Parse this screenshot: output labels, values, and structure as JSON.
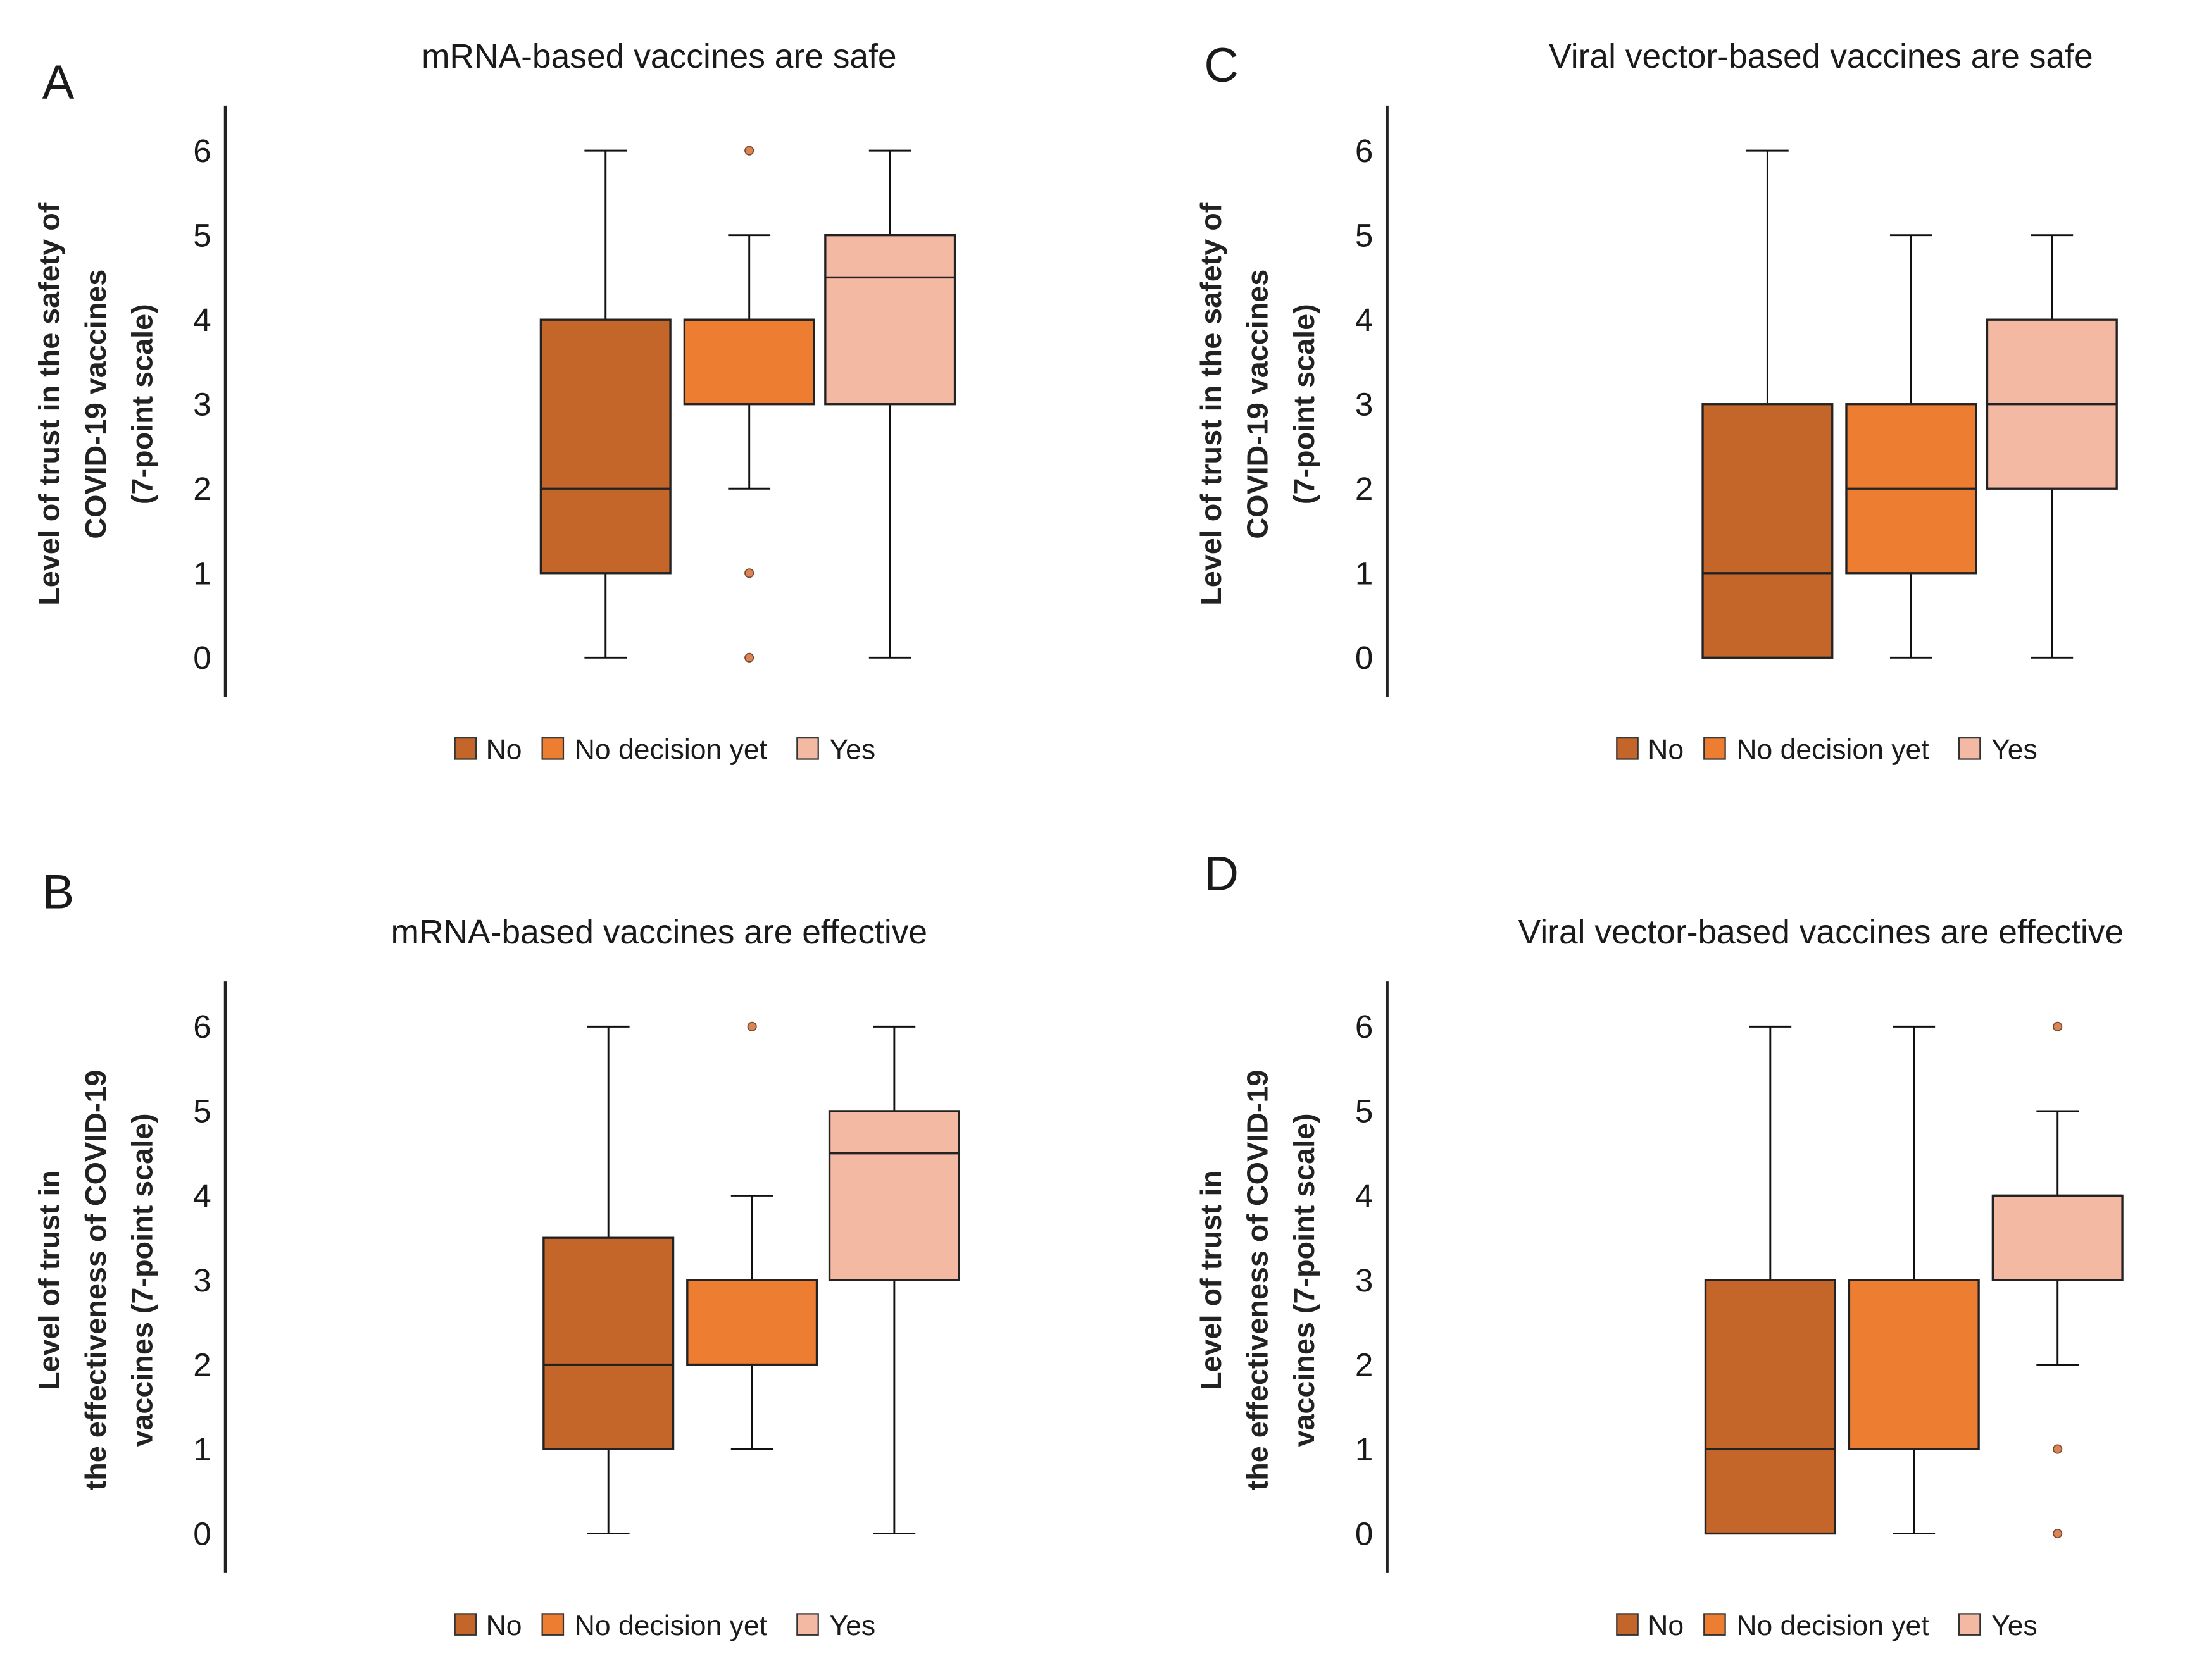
{
  "colors": {
    "No": "#C4662A",
    "No decision yet": "#ED7D31",
    "Yes": "#F4B9A3",
    "outlier": "#D98556"
  },
  "chart_data": [
    {
      "type": "box",
      "panel": "A",
      "title": "mRNA-based  vaccines are safe",
      "ylabel": [
        "Level of trust in the  safety of",
        "COVID-19 vaccines",
        "(7-point scale)"
      ],
      "yticks": [
        0,
        1,
        2,
        3,
        4,
        5,
        6
      ],
      "ylim": [
        -0.45,
        6.5
      ],
      "legend": [
        "No",
        "No decision yet",
        "Yes"
      ],
      "legend_position": "bottom",
      "series": [
        {
          "name": "No",
          "min": 0,
          "q1": 1,
          "median": 2,
          "q3": 4,
          "max": 6,
          "outliers": []
        },
        {
          "name": "No decision yet",
          "min": 2,
          "q1": 3,
          "median": 4,
          "q3": 4,
          "max": 5,
          "outliers": [
            6,
            1,
            0
          ]
        },
        {
          "name": "Yes",
          "min": 0,
          "q1": 3,
          "median": 4.5,
          "q3": 5,
          "max": 6,
          "outliers": []
        }
      ]
    },
    {
      "type": "box",
      "panel": "B",
      "title": "mRNA-based  vaccines are effective",
      "ylabel": [
        "Level of trust in",
        "the effectiveness of COVID-19",
        "vaccines (7-point scale)"
      ],
      "yticks": [
        0,
        1,
        2,
        3,
        4,
        5,
        6
      ],
      "ylim": [
        -0.45,
        6.5
      ],
      "legend": [
        "No",
        "No decision yet",
        "Yes"
      ],
      "legend_position": "bottom",
      "series": [
        {
          "name": "No",
          "min": 0,
          "q1": 1,
          "median": 2,
          "q3": 3.5,
          "max": 6,
          "outliers": []
        },
        {
          "name": "No decision yet",
          "min": 1,
          "q1": 2,
          "median": 3,
          "q3": 3,
          "max": 4,
          "outliers": [
            6
          ]
        },
        {
          "name": "Yes",
          "min": 0,
          "q1": 3,
          "median": 4.5,
          "q3": 5,
          "max": 6,
          "outliers": []
        }
      ]
    },
    {
      "type": "box",
      "panel": "C",
      "title": "Viral vector-based  vaccines are safe",
      "ylabel": [
        "Level of trust in the  safety of",
        "COVID-19 vaccines",
        "(7-point scale)"
      ],
      "yticks": [
        0,
        1,
        2,
        3,
        4,
        5,
        6
      ],
      "ylim": [
        -0.45,
        6.5
      ],
      "legend": [
        "No",
        "No decision yet",
        "Yes"
      ],
      "legend_position": "bottom",
      "series": [
        {
          "name": "No",
          "min": 0,
          "q1": 0,
          "median": 1,
          "q3": 3,
          "max": 6,
          "outliers": []
        },
        {
          "name": "No decision yet",
          "min": 0,
          "q1": 1,
          "median": 2,
          "q3": 3,
          "max": 5,
          "outliers": []
        },
        {
          "name": "Yes",
          "min": 0,
          "q1": 2,
          "median": 3,
          "q3": 4,
          "max": 5,
          "outliers": []
        }
      ]
    },
    {
      "type": "box",
      "panel": "D",
      "title": "Viral vector-based  vaccines are effective",
      "ylabel": [
        "Level of trust in",
        "the effectiveness of COVID-19",
        "vaccines (7-point scale)"
      ],
      "yticks": [
        0,
        1,
        2,
        3,
        4,
        5,
        6
      ],
      "ylim": [
        -0.45,
        6.5
      ],
      "legend": [
        "No",
        "No decision yet",
        "Yes"
      ],
      "legend_position": "bottom",
      "series": [
        {
          "name": "No",
          "min": 0,
          "q1": 0,
          "median": 1,
          "q3": 3,
          "max": 6,
          "outliers": []
        },
        {
          "name": "No decision yet",
          "min": 0,
          "q1": 1,
          "median": 3,
          "q3": 3,
          "max": 6,
          "outliers": []
        },
        {
          "name": "Yes",
          "min": 2,
          "q1": 3,
          "median": 4,
          "q3": 4,
          "max": 5,
          "outliers": [
            6,
            1,
            0
          ]
        }
      ]
    }
  ]
}
